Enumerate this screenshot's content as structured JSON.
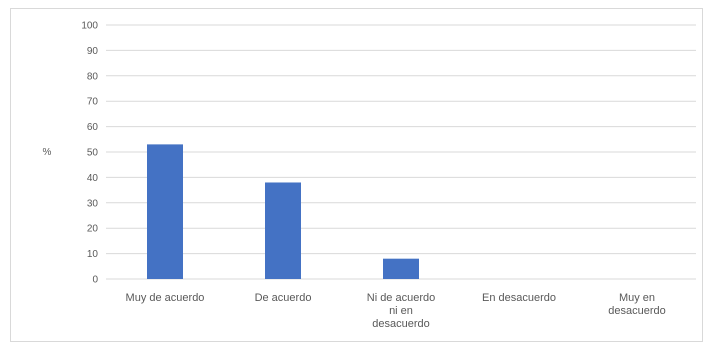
{
  "chart_data": {
    "type": "bar",
    "title": "",
    "xlabel": "",
    "ylabel": "%",
    "ylim": [
      0,
      100
    ],
    "yticks": [
      0,
      10,
      20,
      30,
      40,
      50,
      60,
      70,
      80,
      90,
      100
    ],
    "grid": true,
    "legend": "none",
    "bar_color": "#4472c4",
    "categories": [
      "Muy de acuerdo",
      "De acuerdo",
      "Ni de acuerdo ni en desacuerdo",
      "En desacuerdo",
      "Muy en desacuerdo"
    ],
    "category_lines": [
      [
        "Muy de acuerdo"
      ],
      [
        "De acuerdo"
      ],
      [
        "Ni de acuerdo",
        "ni en",
        "desacuerdo"
      ],
      [
        "En desacuerdo"
      ],
      [
        "Muy en",
        "desacuerdo"
      ]
    ],
    "values": [
      53,
      38,
      8,
      0,
      0
    ]
  }
}
